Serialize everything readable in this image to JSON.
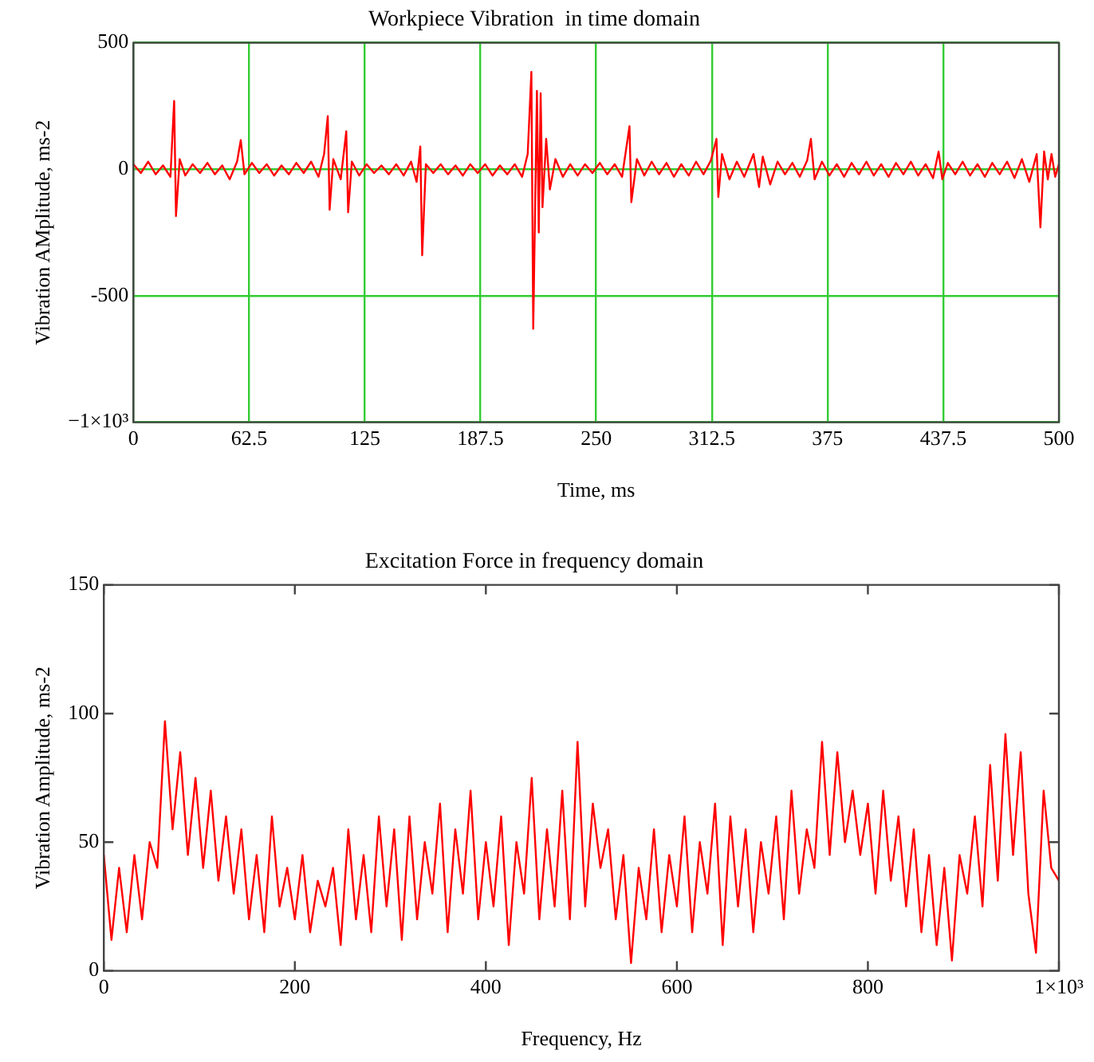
{
  "chart_data": [
    {
      "type": "line",
      "title": "Workpiece Vibration  in time domain",
      "xlabel": "Time, ms",
      "ylabel": "Vibration AMplitude, ms-2",
      "xlim": [
        0,
        500
      ],
      "xticks": [
        0,
        62.5,
        125,
        187.5,
        250,
        312.5,
        375,
        437.5,
        500
      ],
      "ylim": [
        -1000,
        500
      ],
      "yticks": [
        {
          "value": -1000,
          "label": "−1×10³"
        },
        -500,
        0,
        500
      ],
      "grid": true,
      "marker": "none",
      "series": [
        {
          "color": "#ff0000",
          "x": [
            0,
            4,
            8,
            12,
            16,
            20,
            22,
            23,
            25,
            28,
            32,
            36,
            40,
            44,
            48,
            52,
            56,
            58,
            60,
            64,
            68,
            72,
            76,
            80,
            84,
            88,
            92,
            96,
            100,
            103,
            105,
            106,
            108,
            112,
            115,
            116,
            118,
            122,
            126,
            130,
            134,
            138,
            142,
            146,
            150,
            153,
            155,
            156,
            158,
            162,
            166,
            170,
            174,
            178,
            182,
            186,
            190,
            194,
            198,
            202,
            206,
            210,
            213,
            215,
            216,
            218,
            219,
            220,
            221,
            223,
            225,
            228,
            232,
            236,
            240,
            244,
            248,
            252,
            256,
            260,
            264,
            268,
            269,
            272,
            276,
            280,
            284,
            288,
            292,
            296,
            300,
            304,
            308,
            312,
            315,
            316,
            318,
            322,
            326,
            330,
            335,
            338,
            340,
            344,
            348,
            352,
            356,
            360,
            364,
            366,
            368,
            372,
            376,
            380,
            384,
            388,
            392,
            396,
            400,
            404,
            408,
            412,
            416,
            420,
            424,
            428,
            432,
            435,
            437,
            440,
            444,
            448,
            452,
            456,
            460,
            464,
            468,
            472,
            476,
            480,
            484,
            488,
            490,
            492,
            494,
            496,
            498,
            500
          ],
          "values": [
            20,
            -15,
            30,
            -20,
            15,
            -30,
            270,
            -185,
            40,
            -25,
            20,
            -15,
            25,
            -20,
            15,
            -40,
            30,
            115,
            -20,
            25,
            -15,
            20,
            -25,
            15,
            -20,
            25,
            -15,
            30,
            -30,
            60,
            210,
            -160,
            40,
            -40,
            150,
            -170,
            30,
            -25,
            20,
            -15,
            15,
            -20,
            20,
            -25,
            30,
            -50,
            90,
            -340,
            20,
            -15,
            20,
            -20,
            15,
            -25,
            20,
            -15,
            20,
            -25,
            15,
            -20,
            20,
            -30,
            60,
            385,
            -630,
            310,
            -250,
            300,
            -150,
            120,
            -80,
            40,
            -30,
            20,
            -25,
            20,
            -15,
            25,
            -20,
            20,
            -30,
            170,
            -130,
            40,
            -25,
            30,
            -20,
            25,
            -30,
            20,
            -25,
            30,
            -20,
            35,
            120,
            -110,
            60,
            -40,
            30,
            -30,
            60,
            -70,
            50,
            -60,
            30,
            -20,
            25,
            -30,
            35,
            120,
            -40,
            30,
            -25,
            20,
            -30,
            25,
            -20,
            30,
            -25,
            20,
            -30,
            25,
            -20,
            30,
            -25,
            20,
            -35,
            70,
            -40,
            25,
            -20,
            30,
            -25,
            20,
            -30,
            25,
            -20,
            30,
            -35,
            40,
            -50,
            60,
            -230,
            70,
            -40,
            60,
            -30,
            20
          ]
        }
      ]
    },
    {
      "type": "line",
      "title": "Excitation Force in frequency domain",
      "xlabel": "Frequency, Hz",
      "ylabel": "Vibration Amplitude, ms-2",
      "xlim": [
        0,
        1000
      ],
      "xticks": [
        0,
        200,
        400,
        600,
        800,
        {
          "value": 1000,
          "label": "1×10³"
        }
      ],
      "ylim": [
        0,
        150
      ],
      "yticks": [
        0,
        50,
        100,
        150
      ],
      "grid": false,
      "marker": "none",
      "series": [
        {
          "color": "#ff0000",
          "x": [
            0,
            8,
            16,
            24,
            32,
            40,
            48,
            56,
            64,
            72,
            80,
            88,
            96,
            104,
            112,
            120,
            128,
            136,
            144,
            152,
            160,
            168,
            176,
            184,
            192,
            200,
            208,
            216,
            224,
            232,
            240,
            248,
            256,
            264,
            272,
            280,
            288,
            296,
            304,
            312,
            320,
            328,
            336,
            344,
            352,
            360,
            368,
            376,
            384,
            392,
            400,
            408,
            416,
            424,
            432,
            440,
            448,
            456,
            464,
            472,
            480,
            488,
            496,
            504,
            512,
            520,
            528,
            536,
            544,
            552,
            560,
            568,
            576,
            584,
            592,
            600,
            608,
            616,
            624,
            632,
            640,
            648,
            656,
            664,
            672,
            680,
            688,
            696,
            704,
            712,
            720,
            728,
            736,
            744,
            752,
            760,
            768,
            776,
            784,
            792,
            800,
            808,
            816,
            824,
            832,
            840,
            848,
            856,
            864,
            872,
            880,
            888,
            896,
            904,
            912,
            920,
            928,
            936,
            944,
            952,
            960,
            968,
            976,
            984,
            992,
            1000
          ],
          "values": [
            45,
            12,
            40,
            15,
            45,
            20,
            50,
            40,
            97,
            55,
            85,
            45,
            75,
            40,
            70,
            35,
            60,
            30,
            55,
            20,
            45,
            15,
            60,
            25,
            40,
            20,
            45,
            15,
            35,
            25,
            40,
            10,
            55,
            20,
            45,
            15,
            60,
            25,
            55,
            12,
            60,
            20,
            50,
            30,
            65,
            15,
            55,
            30,
            70,
            20,
            50,
            25,
            60,
            10,
            50,
            30,
            75,
            20,
            55,
            25,
            70,
            20,
            89,
            25,
            65,
            40,
            55,
            20,
            45,
            3,
            40,
            20,
            55,
            15,
            45,
            25,
            60,
            15,
            50,
            30,
            65,
            10,
            60,
            25,
            55,
            15,
            50,
            30,
            60,
            20,
            70,
            30,
            55,
            40,
            89,
            45,
            85,
            50,
            70,
            45,
            65,
            30,
            70,
            35,
            60,
            25,
            55,
            15,
            45,
            10,
            40,
            4,
            45,
            30,
            60,
            25,
            80,
            35,
            92,
            45,
            85,
            30,
            7,
            70,
            40,
            35
          ]
        }
      ]
    }
  ]
}
